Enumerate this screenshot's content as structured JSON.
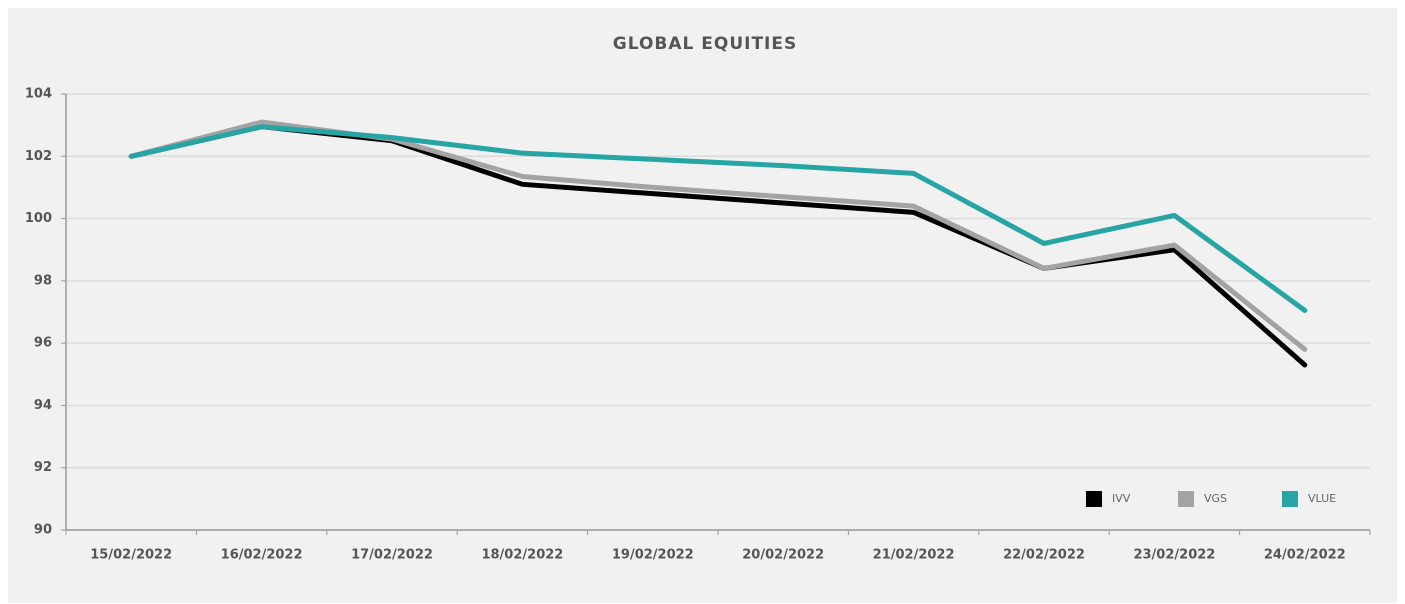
{
  "chart_data": {
    "type": "line",
    "title": "GLOBAL EQUITIES",
    "categories": [
      "15/02/2022",
      "16/02/2022",
      "17/02/2022",
      "18/02/2022",
      "19/02/2022",
      "20/02/2022",
      "21/02/2022",
      "22/02/2022",
      "23/02/2022",
      "24/02/2022"
    ],
    "series": [
      {
        "name": "IVV",
        "color": "#000000",
        "values": [
          102.0,
          102.95,
          102.5,
          101.1,
          100.8,
          100.5,
          100.2,
          98.4,
          99.0,
          95.3
        ]
      },
      {
        "name": "VGS",
        "color": "#a3a3a3",
        "values": [
          102.0,
          103.1,
          102.55,
          101.35,
          101.0,
          100.7,
          100.4,
          98.4,
          99.15,
          95.8
        ]
      },
      {
        "name": "VLUE",
        "color": "#26a5a4",
        "values": [
          102.0,
          102.95,
          102.6,
          102.1,
          101.9,
          101.7,
          101.45,
          99.2,
          100.1,
          97.05
        ]
      }
    ],
    "ylim": [
      90,
      104
    ],
    "yticks": [
      90,
      92,
      94,
      96,
      98,
      100,
      102,
      104
    ],
    "grid": true,
    "legend": "lower right"
  }
}
